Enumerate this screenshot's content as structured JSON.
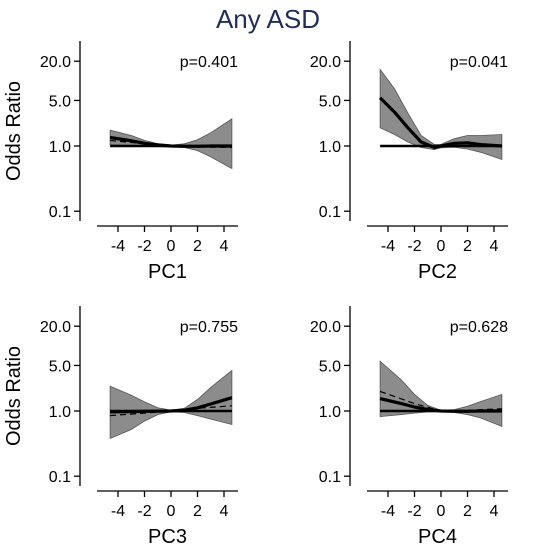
{
  "title": "Any ASD",
  "chart_data": [
    {
      "type": "line",
      "xlabel": "PC1",
      "ylabel": "Odds Ratio",
      "annotation": "p=0.401",
      "x_ticks": [
        "-4",
        "-2",
        "0",
        "2",
        "4"
      ],
      "y_ticks": [
        "0.1",
        "1.0",
        "5.0",
        "20.0"
      ],
      "xlim": [
        -5,
        5
      ],
      "ylim": [
        0.07,
        25
      ],
      "y_scale": "log",
      "series": [
        {
          "role": "fit",
          "x": [
            -4.6,
            -3,
            -2,
            -1,
            0,
            1,
            2,
            3,
            4.6
          ],
          "values": [
            1.35,
            1.2,
            1.1,
            1.04,
            1.0,
            0.99,
            0.99,
            1.0,
            1.0
          ]
        },
        {
          "role": "dashed",
          "x": [
            -4.6,
            -2,
            0,
            2,
            4.6
          ],
          "values": [
            1.22,
            1.08,
            1.0,
            0.97,
            0.95
          ]
        },
        {
          "role": "ci_lower",
          "x": [
            -4.6,
            -3,
            -2,
            -1,
            0,
            1,
            2,
            3,
            4.6
          ],
          "values": [
            1.05,
            1.02,
            1.0,
            0.98,
            0.97,
            0.95,
            0.85,
            0.68,
            0.45
          ]
        },
        {
          "role": "ci_upper",
          "x": [
            -4.6,
            -3,
            -2,
            -1,
            0,
            1,
            2,
            3,
            4.6
          ],
          "values": [
            1.75,
            1.45,
            1.22,
            1.08,
            1.03,
            1.08,
            1.25,
            1.6,
            2.6
          ]
        },
        {
          "role": "reference",
          "x": [
            -4.6,
            4.6
          ],
          "values": [
            1.0,
            1.0
          ]
        }
      ]
    },
    {
      "type": "line",
      "xlabel": "PC2",
      "ylabel": "",
      "annotation": "p=0.041",
      "x_ticks": [
        "-4",
        "-2",
        "0",
        "2",
        "4"
      ],
      "y_ticks": [
        "0.1",
        "1.0",
        "5.0",
        "20.0"
      ],
      "xlim": [
        -5,
        5
      ],
      "ylim": [
        0.07,
        25
      ],
      "y_scale": "log",
      "series": [
        {
          "role": "fit",
          "x": [
            -4.6,
            -3.5,
            -2.5,
            -1.5,
            -0.5,
            0,
            1,
            2,
            3,
            4.6
          ],
          "values": [
            5.5,
            3.3,
            1.9,
            1.15,
            0.95,
            1.0,
            1.1,
            1.12,
            1.05,
            1.0
          ]
        },
        {
          "role": "ci_lower",
          "x": [
            -4.6,
            -3.5,
            -2.5,
            -1.5,
            -0.5,
            0,
            1,
            2,
            3,
            4.6
          ],
          "values": [
            1.9,
            1.5,
            1.15,
            0.95,
            0.88,
            0.94,
            0.96,
            0.9,
            0.8,
            0.62
          ]
        },
        {
          "role": "ci_upper",
          "x": [
            -4.6,
            -3.5,
            -2.5,
            -1.5,
            -0.5,
            0,
            1,
            2,
            3,
            4.6
          ],
          "values": [
            15,
            7.5,
            3.2,
            1.45,
            1.05,
            1.06,
            1.3,
            1.45,
            1.45,
            1.5
          ]
        },
        {
          "role": "reference",
          "x": [
            -4.6,
            4.6
          ],
          "values": [
            1.0,
            1.0
          ]
        }
      ]
    },
    {
      "type": "line",
      "xlabel": "PC3",
      "ylabel": "Odds Ratio",
      "annotation": "p=0.755",
      "x_ticks": [
        "-4",
        "-2",
        "0",
        "2",
        "4"
      ],
      "y_ticks": [
        "0.1",
        "1.0",
        "5.0",
        "20.0"
      ],
      "xlim": [
        -5,
        5
      ],
      "ylim": [
        0.07,
        25
      ],
      "y_scale": "log",
      "series": [
        {
          "role": "fit",
          "x": [
            -4.6,
            -3,
            -2,
            -1,
            0,
            1,
            2,
            3,
            4.6
          ],
          "values": [
            0.97,
            0.98,
            0.99,
            0.995,
            1.0,
            1.03,
            1.12,
            1.28,
            1.6
          ]
        },
        {
          "role": "dashed",
          "x": [
            -4.6,
            -2,
            0,
            2,
            4.6
          ],
          "values": [
            0.85,
            0.93,
            1.0,
            1.1,
            1.2
          ]
        },
        {
          "role": "ci_lower",
          "x": [
            -4.6,
            -3,
            -2,
            -1,
            0,
            1,
            2,
            3,
            4.6
          ],
          "values": [
            0.38,
            0.52,
            0.7,
            0.88,
            0.97,
            0.95,
            0.85,
            0.75,
            0.62
          ]
        },
        {
          "role": "ci_upper",
          "x": [
            -4.6,
            -3,
            -2,
            -1,
            0,
            1,
            2,
            3,
            4.6
          ],
          "values": [
            2.4,
            1.75,
            1.38,
            1.12,
            1.03,
            1.1,
            1.5,
            2.3,
            4.2
          ]
        },
        {
          "role": "reference",
          "x": [
            -4.6,
            4.6
          ],
          "values": [
            1.0,
            1.0
          ]
        }
      ]
    },
    {
      "type": "line",
      "xlabel": "PC4",
      "ylabel": "",
      "annotation": "p=0.628",
      "x_ticks": [
        "-4",
        "-2",
        "0",
        "2",
        "4"
      ],
      "y_ticks": [
        "0.1",
        "1.0",
        "5.0",
        "20.0"
      ],
      "xlim": [
        -5,
        5
      ],
      "ylim": [
        0.07,
        25
      ],
      "y_scale": "log",
      "series": [
        {
          "role": "fit",
          "x": [
            -4.6,
            -3,
            -2,
            -1,
            0,
            1,
            2,
            3,
            4.6
          ],
          "values": [
            1.55,
            1.3,
            1.15,
            1.05,
            1.0,
            0.99,
            0.99,
            1.0,
            1.0
          ]
        },
        {
          "role": "dashed",
          "x": [
            -4.6,
            -2,
            0,
            2,
            4.6
          ],
          "values": [
            2.0,
            1.3,
            1.0,
            1.03,
            1.08
          ]
        },
        {
          "role": "ci_lower",
          "x": [
            -4.6,
            -3,
            -2,
            -1,
            0,
            1,
            2,
            3,
            4.6
          ],
          "values": [
            0.82,
            0.88,
            0.93,
            0.97,
            0.98,
            0.95,
            0.88,
            0.78,
            0.58
          ]
        },
        {
          "role": "ci_upper",
          "x": [
            -4.6,
            -3,
            -2,
            -1,
            0,
            1,
            2,
            3,
            4.6
          ],
          "values": [
            5.8,
            3.0,
            1.8,
            1.22,
            1.03,
            1.05,
            1.18,
            1.4,
            1.8
          ]
        },
        {
          "role": "reference",
          "x": [
            -4.6,
            4.6
          ],
          "values": [
            1.0,
            1.0
          ]
        }
      ]
    }
  ]
}
